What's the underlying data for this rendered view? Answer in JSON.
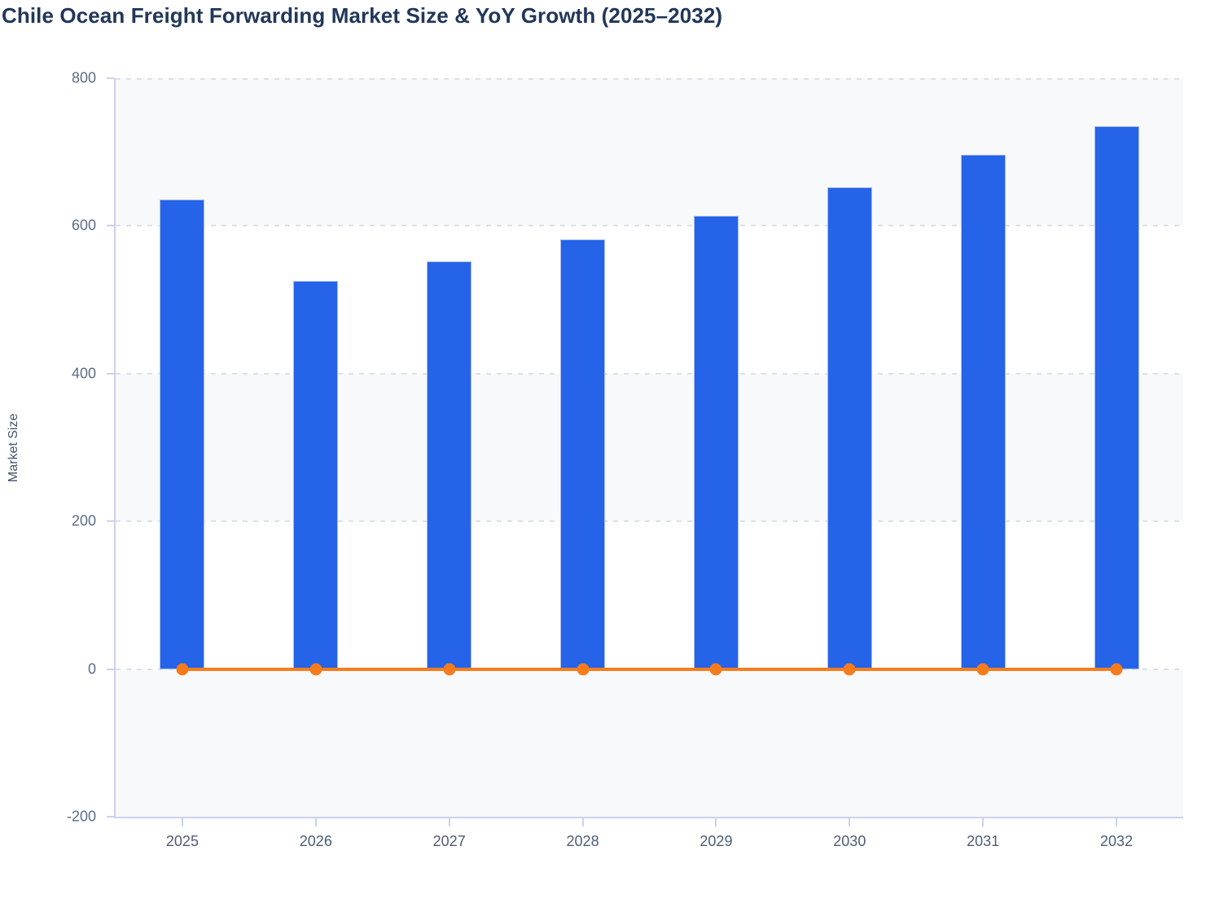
{
  "chart_data": {
    "type": "bar",
    "title": "Chile Ocean Freight Forwarding Market Size & YoY Growth (2025–2032)",
    "categories": [
      "2025",
      "2026",
      "2027",
      "2028",
      "2029",
      "2030",
      "2031",
      "2032"
    ],
    "series": [
      {
        "name": "Market Size",
        "type": "bar",
        "color": "#2563e8",
        "values": [
          636,
          526,
          552,
          582,
          614,
          652,
          696,
          735
        ]
      },
      {
        "name": "YoY Growth",
        "type": "line",
        "color": "#f57c1c",
        "values": [
          0,
          0,
          0,
          0,
          0,
          0,
          0,
          0
        ]
      }
    ],
    "xlabel": "",
    "ylabel": "Market Size",
    "ylim": [
      -200,
      800
    ],
    "ytick_step": 200,
    "yticks": [
      800,
      600,
      400,
      200,
      0,
      -200
    ],
    "grid": "horizontal-dashed",
    "legend_position": "none",
    "plot_background": "alternating-light-bands"
  },
  "colors": {
    "bar": "#2563e8",
    "bar_border": "#a9bdf0",
    "line": "#f57c1c",
    "title_text": "#21375a",
    "axis_line": "#c9d3ea",
    "y_tick_label": "#5d6b85",
    "x_tick_label": "#4e5c74",
    "band": "#f8f9fb",
    "gridline": "#dde0e7"
  }
}
